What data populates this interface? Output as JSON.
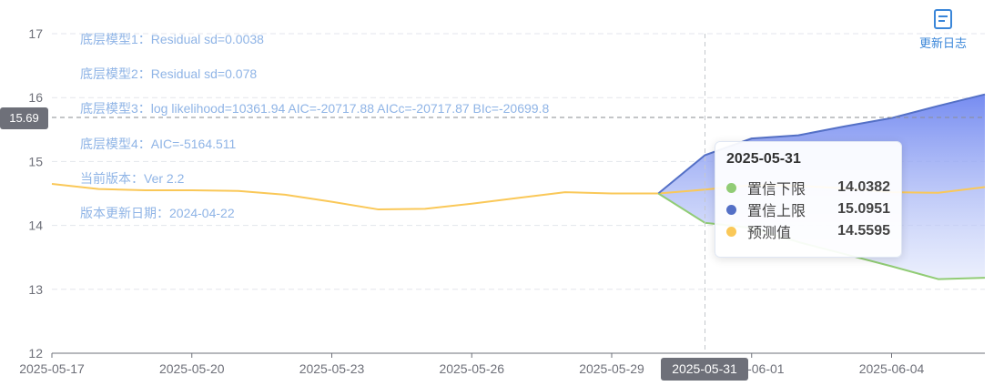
{
  "annotations": [
    "底层模型1：Residual sd=0.0038",
    "底层模型2：Residual sd=0.078",
    "底层模型3：log likelihood=10361.94 AIC=-20717.88 AICc=-20717.87 BIc=-20699.8",
    "底层模型4：AIC=-5164.511",
    "当前版本：Ver 2.2",
    "版本更新日期：2024-04-22"
  ],
  "changelog": {
    "label": "更新日志",
    "icon": "document-icon"
  },
  "crosshair": {
    "y_value": 15.69,
    "y_label": "15.69",
    "x_value": "2025-05-31",
    "x_label": "2025-05-31"
  },
  "tooltip": {
    "title": "2025-05-31",
    "rows": [
      {
        "name": "置信下限",
        "value": "14.0382",
        "color": "#91cc75"
      },
      {
        "name": "置信上限",
        "value": "15.0951",
        "color": "#5470c6"
      },
      {
        "name": "预测值",
        "value": "14.5595",
        "color": "#fac858"
      }
    ]
  },
  "chart_data": {
    "type": "line",
    "ylim": [
      12,
      17
    ],
    "yticks": [
      12,
      13,
      14,
      15,
      16,
      17
    ],
    "x": [
      "2025-05-17",
      "2025-05-18",
      "2025-05-19",
      "2025-05-20",
      "2025-05-21",
      "2025-05-22",
      "2025-05-23",
      "2025-05-24",
      "2025-05-25",
      "2025-05-26",
      "2025-05-27",
      "2025-05-28",
      "2025-05-29",
      "2025-05-30",
      "2025-05-31",
      "2025-06-01",
      "2025-06-02",
      "2025-06-03",
      "2025-06-04",
      "2025-06-05",
      "2025-06-06"
    ],
    "xticks": [
      "2025-05-17",
      "2025-05-20",
      "2025-05-23",
      "2025-05-26",
      "2025-05-29",
      "2025-06-01",
      "2025-06-04"
    ],
    "grid": true,
    "series": [
      {
        "name": "预测值",
        "color": "#fac858",
        "values": [
          14.65,
          14.57,
          14.55,
          14.55,
          14.54,
          14.48,
          14.37,
          14.25,
          14.26,
          14.34,
          14.43,
          14.52,
          14.5,
          14.5,
          14.56,
          14.63,
          14.62,
          14.58,
          14.52,
          14.51,
          14.6
        ]
      },
      {
        "name": "置信上限",
        "color": "#5470c6",
        "values": [
          null,
          null,
          null,
          null,
          null,
          null,
          null,
          null,
          null,
          null,
          null,
          null,
          null,
          14.5,
          15.1,
          15.36,
          15.41,
          15.55,
          15.68,
          15.87,
          16.05
        ]
      },
      {
        "name": "置信下限",
        "color": "#91cc75",
        "values": [
          null,
          null,
          null,
          null,
          null,
          null,
          null,
          null,
          null,
          null,
          null,
          null,
          null,
          14.5,
          14.04,
          13.96,
          13.74,
          13.55,
          13.36,
          13.16,
          13.18
        ]
      }
    ]
  }
}
